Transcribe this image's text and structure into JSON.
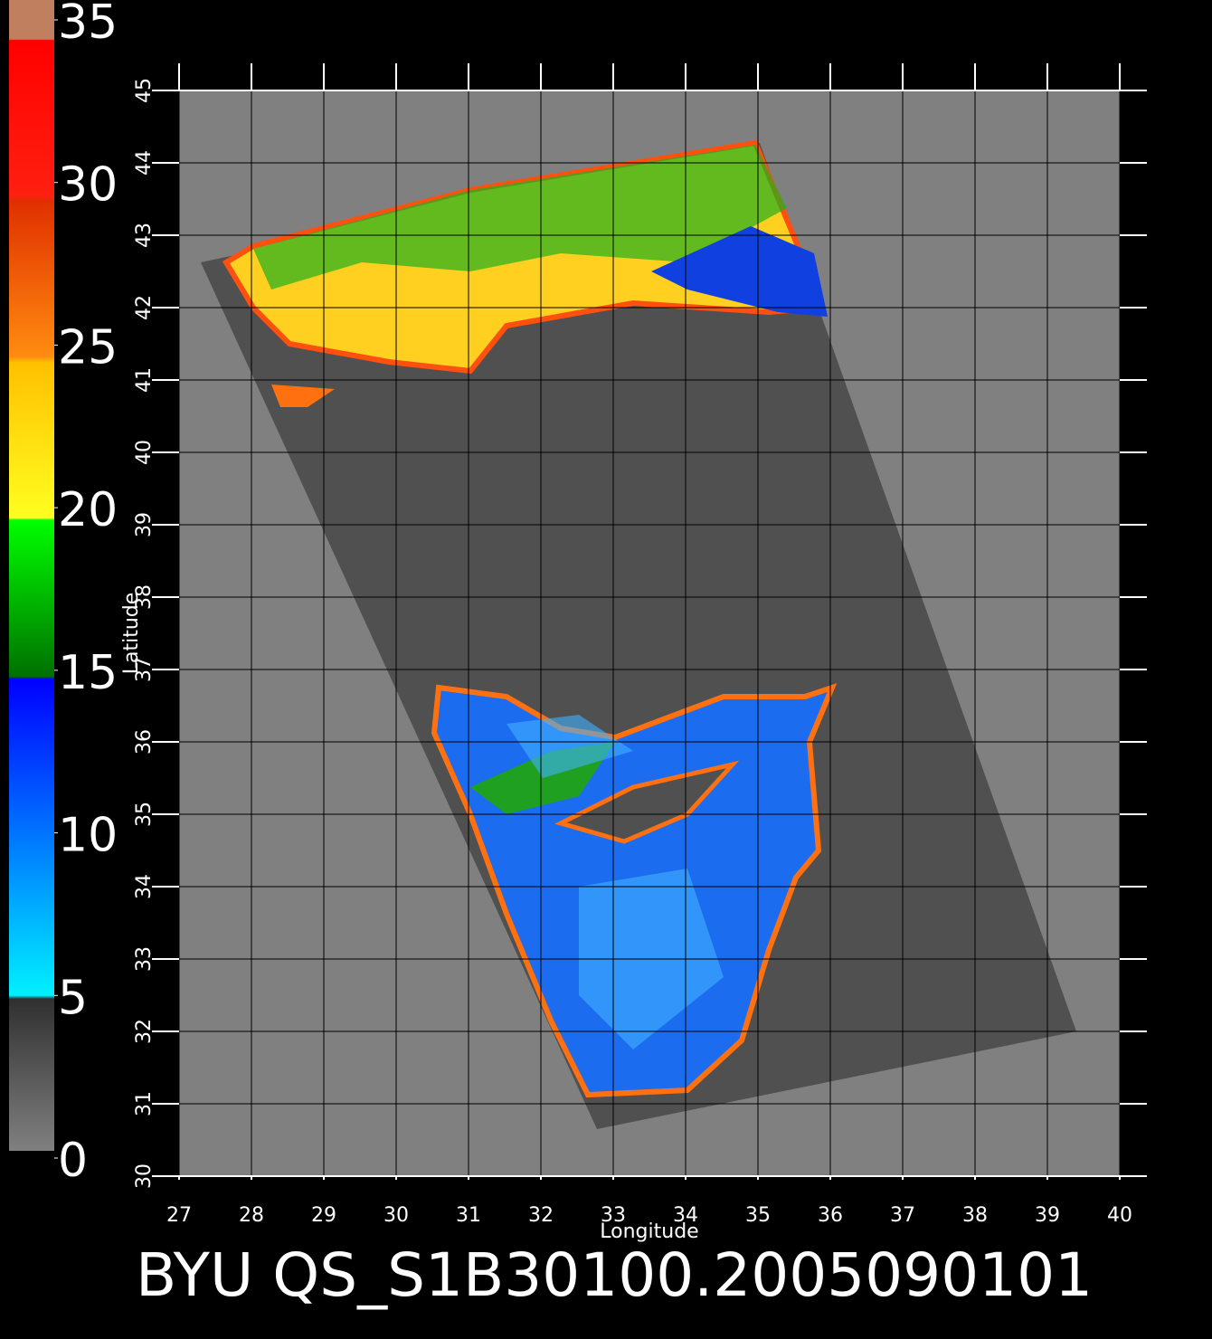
{
  "map": {
    "title": "BYU  QS_S1B30100.2005090101",
    "xlabel": "Longitude",
    "ylabel": "Latitude",
    "xlim": [
      27,
      40
    ],
    "ylim": [
      30,
      45
    ],
    "xticks": [
      27,
      28,
      29,
      30,
      31,
      32,
      33,
      34,
      35,
      36,
      37,
      38,
      39,
      40
    ],
    "yticks": [
      30,
      31,
      32,
      33,
      34,
      35,
      36,
      37,
      38,
      39,
      40,
      41,
      42,
      43,
      44,
      45
    ]
  },
  "colorbar": {
    "lim": [
      0,
      35
    ],
    "ticks": [
      0,
      5,
      10,
      15,
      20,
      25,
      30,
      35
    ]
  }
}
